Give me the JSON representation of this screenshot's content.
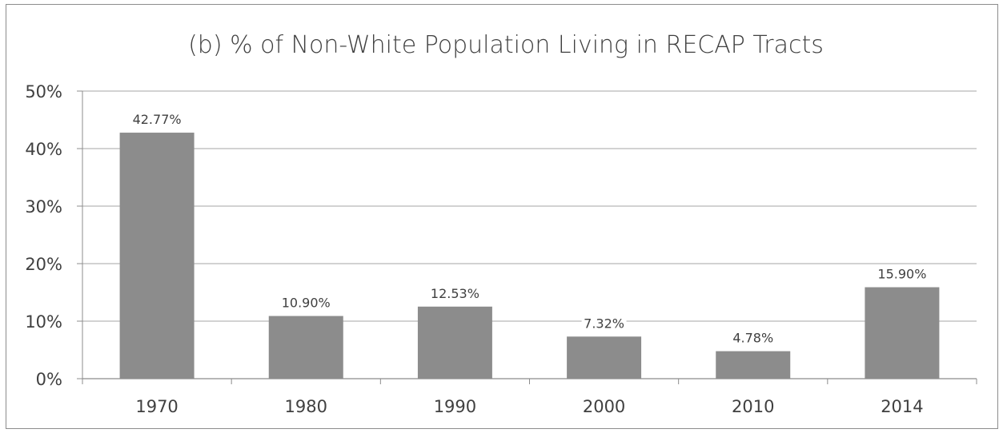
{
  "chart_data": {
    "type": "bar",
    "title": "(b) % of Non-White Population Living in RECAP Tracts",
    "categories": [
      "1970",
      "1980",
      "1990",
      "2000",
      "2010",
      "2014"
    ],
    "values": [
      42.77,
      10.9,
      12.53,
      7.32,
      4.78,
      15.9
    ],
    "data_labels": [
      "42.77%",
      "10.90%",
      "12.53%",
      "7.32%",
      "4.78%",
      "15.90%"
    ],
    "ylim": [
      0,
      50
    ],
    "yticks": [
      0,
      10,
      20,
      30,
      40,
      50
    ],
    "ytick_labels": [
      "0%",
      "10%",
      "20%",
      "30%",
      "40%",
      "50%"
    ],
    "xlabel": "",
    "ylabel": "",
    "grid": true,
    "legend": "none",
    "colors": {
      "bar": "#8c8c8c",
      "grid": "#a6a6a6",
      "axis": "#8c8c8c",
      "text": "#404040",
      "label_background": "#ffffff"
    }
  }
}
